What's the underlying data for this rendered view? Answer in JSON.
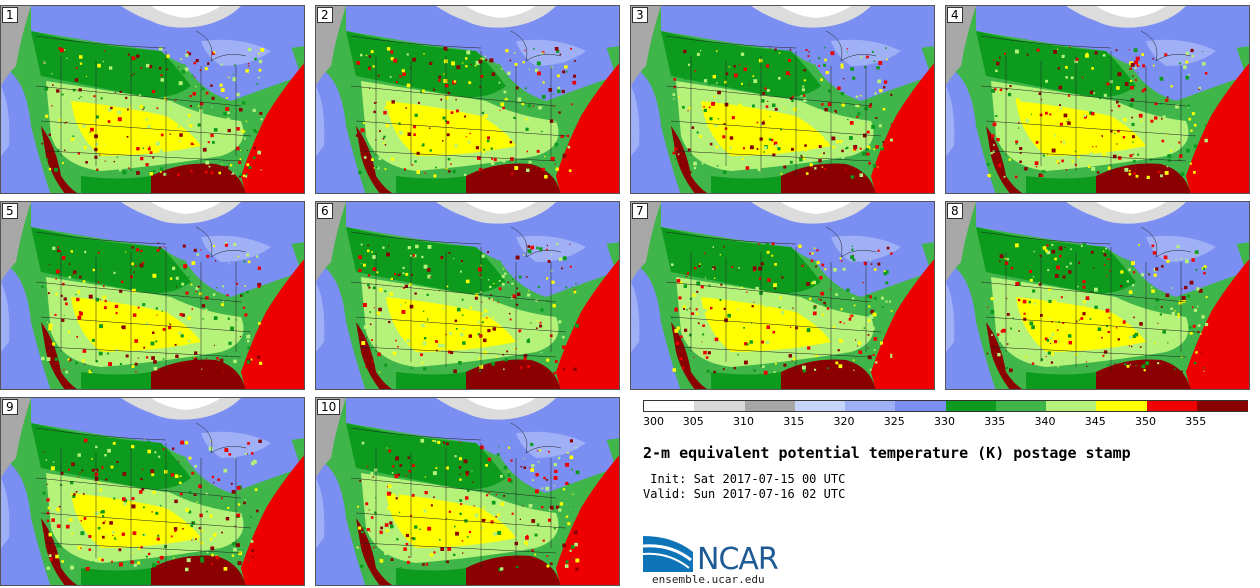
{
  "panels": [
    {
      "label": "1"
    },
    {
      "label": "2"
    },
    {
      "label": "3"
    },
    {
      "label": "4"
    },
    {
      "label": "5"
    },
    {
      "label": "6"
    },
    {
      "label": "7"
    },
    {
      "label": "8"
    },
    {
      "label": "9"
    },
    {
      "label": "10"
    }
  ],
  "colorbar": {
    "ticks": [
      "300",
      "305",
      "310",
      "315",
      "320",
      "325",
      "330",
      "335",
      "340",
      "345",
      "350",
      "355"
    ],
    "colors": [
      "#ffffff",
      "#d9d9d9",
      "#a6a6a6",
      "#c4d4fa",
      "#9fb0f7",
      "#7b8ef2",
      "#0c9b1c",
      "#3fb54a",
      "#b5f27a",
      "#ffff00",
      "#ee0000",
      "#8b0000"
    ]
  },
  "title": "2-m equivalent potential temperature (K) postage stamp",
  "init": " Init: Sat 2017-07-15 00 UTC",
  "valid": "Valid: Sun 2017-07-16 02 UTC",
  "logo": {
    "name": "NCAR",
    "url": "ensemble.ucar.edu"
  }
}
